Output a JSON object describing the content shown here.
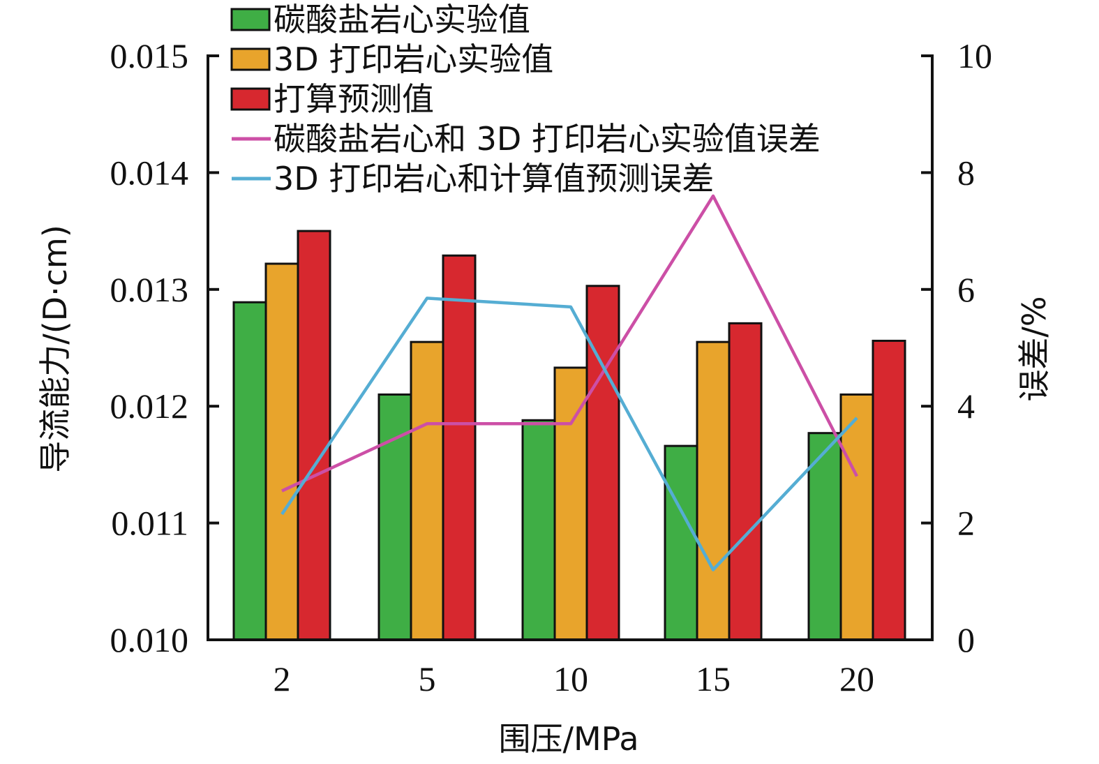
{
  "chart_data": {
    "type": "bar",
    "categories": [
      "2",
      "5",
      "10",
      "15",
      "20"
    ],
    "xlabel": "围压/MPa",
    "ylabel": "导流能力/(D·cm)",
    "ylabel_right": "误差/%",
    "ylim": [
      0.01,
      0.015
    ],
    "ylim_right": [
      0,
      10
    ],
    "yticks": [
      "0.010",
      "0.011",
      "0.012",
      "0.013",
      "0.014",
      "0.015"
    ],
    "yticks_right": [
      "0",
      "2",
      "4",
      "6",
      "8",
      "10"
    ],
    "series": [
      {
        "name": "碳酸盐岩心实验值",
        "kind": "bar",
        "color": "#3fae45",
        "values": [
          0.01289,
          0.0121,
          0.01188,
          0.01166,
          0.01177
        ]
      },
      {
        "name": "3D 打印岩心实验值",
        "kind": "bar",
        "color": "#e8a42c",
        "values": [
          0.01322,
          0.01255,
          0.01233,
          0.01255,
          0.0121
        ]
      },
      {
        "name": "打算预测值",
        "kind": "bar",
        "color": "#d7282f",
        "values": [
          0.0135,
          0.01329,
          0.01303,
          0.01271,
          0.01256
        ]
      },
      {
        "name": "碳酸盐岩心和 3D 打印岩心实验值误差",
        "kind": "line",
        "axis": "right",
        "color": "#cc4fa6",
        "values": [
          2.55,
          3.7,
          3.7,
          7.6,
          2.8
        ]
      },
      {
        "name": "3D 打印岩心和计算值预测误差",
        "kind": "line",
        "axis": "right",
        "color": "#55add3",
        "values": [
          2.15,
          5.85,
          5.7,
          1.2,
          3.8
        ]
      }
    ],
    "legend": "top-left",
    "grid": false
  }
}
